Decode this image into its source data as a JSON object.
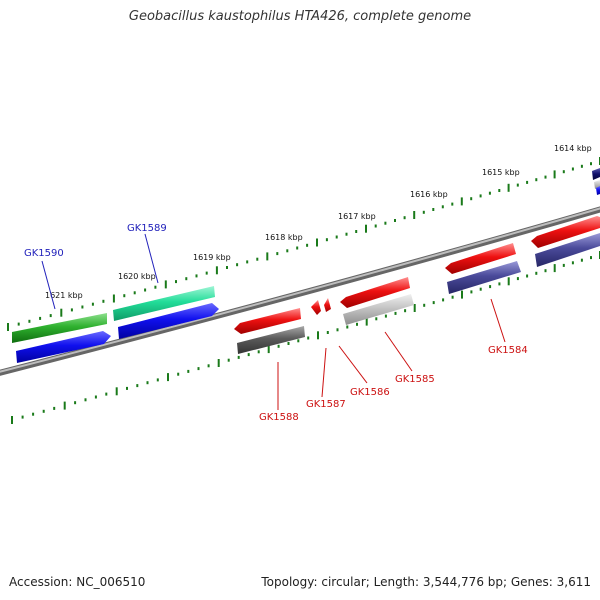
{
  "title": "Geobacillus kaustophilus HTA426, complete genome",
  "footer": {
    "accession": "Accession: NC_006510",
    "summary": "Topology: circular; Length: 3,544,776 bp; Genes: 3,611"
  },
  "colors": {
    "backbone": "#8a8a8a",
    "tick": "#1a7a1a",
    "gene_label_blue": "#2222bb",
    "gene_label_red": "#cc1111"
  },
  "ruler_labels": [
    "1621 kbp",
    "1620 kbp",
    "1619 kbp",
    "1618 kbp",
    "1617 kbp",
    "1616 kbp",
    "1615 kbp",
    "1614 kbp"
  ],
  "genes": [
    {
      "name": "GK1590",
      "color": "blue"
    },
    {
      "name": "GK1589",
      "color": "blue"
    },
    {
      "name": "GK1588",
      "color": "red"
    },
    {
      "name": "GK1587",
      "color": "red"
    },
    {
      "name": "GK1586",
      "color": "red"
    },
    {
      "name": "GK1585",
      "color": "red"
    },
    {
      "name": "GK1584",
      "color": "red"
    }
  ]
}
